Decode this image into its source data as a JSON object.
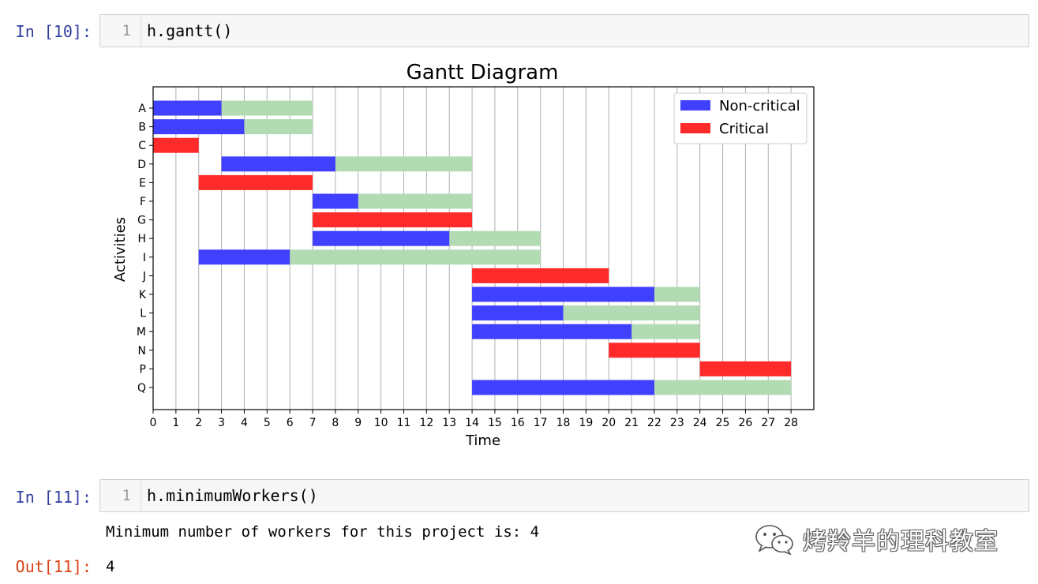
{
  "cells": [
    {
      "prompt": "In [10]:",
      "line_number": "1",
      "code": "h.gantt()"
    },
    {
      "prompt": "In [11]:",
      "line_number": "1",
      "code": "h.minimumWorkers()",
      "stdout": "Minimum number of workers for this project is: 4",
      "out_prompt": "Out[11]:",
      "result": "4"
    }
  ],
  "chart_data": {
    "type": "gantt",
    "title": "Gantt Diagram",
    "xlabel": "Time",
    "ylabel": "Activities",
    "xlim": [
      0,
      29
    ],
    "xticks": [
      0,
      1,
      2,
      3,
      4,
      5,
      6,
      7,
      8,
      9,
      10,
      11,
      12,
      13,
      14,
      15,
      16,
      17,
      18,
      19,
      20,
      21,
      22,
      23,
      24,
      25,
      26,
      27,
      28
    ],
    "grid": "vertical",
    "legend_position": "top-right",
    "legend": [
      {
        "label": "Non-critical",
        "color": "#4040ff"
      },
      {
        "label": "Critical",
        "color": "#ff2b2b"
      }
    ],
    "slack_color": "#b3dbb3",
    "activities": [
      {
        "name": "A",
        "start": 0,
        "duration": 3,
        "slack_end": 7,
        "critical": false
      },
      {
        "name": "B",
        "start": 0,
        "duration": 4,
        "slack_end": 7,
        "critical": false
      },
      {
        "name": "C",
        "start": 0,
        "duration": 2,
        "slack_end": 2,
        "critical": true
      },
      {
        "name": "D",
        "start": 3,
        "duration": 5,
        "slack_end": 14,
        "critical": false
      },
      {
        "name": "E",
        "start": 2,
        "duration": 5,
        "slack_end": 7,
        "critical": true
      },
      {
        "name": "F",
        "start": 7,
        "duration": 2,
        "slack_end": 14,
        "critical": false
      },
      {
        "name": "G",
        "start": 7,
        "duration": 7,
        "slack_end": 14,
        "critical": true
      },
      {
        "name": "H",
        "start": 7,
        "duration": 6,
        "slack_end": 17,
        "critical": false
      },
      {
        "name": "I",
        "start": 2,
        "duration": 4,
        "slack_end": 17,
        "critical": false
      },
      {
        "name": "J",
        "start": 14,
        "duration": 6,
        "slack_end": 20,
        "critical": true
      },
      {
        "name": "K",
        "start": 14,
        "duration": 8,
        "slack_end": 24,
        "critical": false
      },
      {
        "name": "L",
        "start": 14,
        "duration": 4,
        "slack_end": 24,
        "critical": false
      },
      {
        "name": "M",
        "start": 14,
        "duration": 7,
        "slack_end": 24,
        "critical": false
      },
      {
        "name": "N",
        "start": 20,
        "duration": 4,
        "slack_end": 24,
        "critical": true
      },
      {
        "name": "P",
        "start": 24,
        "duration": 4,
        "slack_end": 28,
        "critical": true
      },
      {
        "name": "Q",
        "start": 14,
        "duration": 8,
        "slack_end": 28,
        "critical": false
      }
    ]
  },
  "watermark": {
    "text": "烤羚羊的理科教室",
    "icon": "wechat-icon"
  }
}
